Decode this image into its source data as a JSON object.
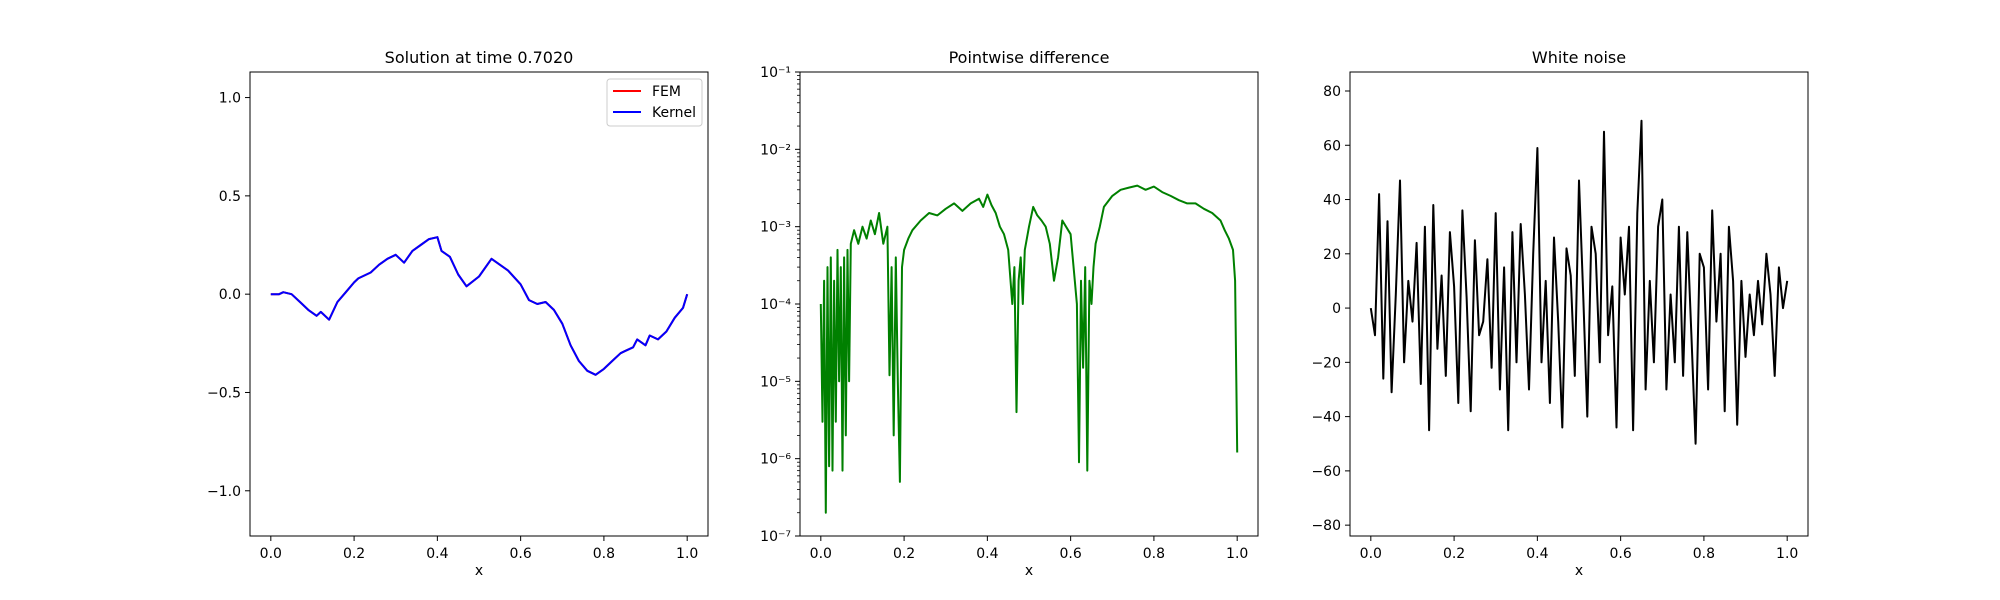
{
  "chart_data": [
    {
      "type": "line",
      "title": "Solution at time 0.7020",
      "xlabel": "x",
      "ylabel": "",
      "xlim": [
        -0.05,
        1.05
      ],
      "ylim": [
        -1.23,
        1.13
      ],
      "yscale": "linear",
      "xticks": [
        0.0,
        0.2,
        0.4,
        0.6,
        0.8,
        1.0
      ],
      "xtick_labels": [
        "0.0",
        "0.2",
        "0.4",
        "0.6",
        "0.8",
        "1.0"
      ],
      "yticks": [
        -1.0,
        -0.5,
        0.0,
        0.5,
        1.0
      ],
      "ytick_labels": [
        "−1.0",
        "−0.5",
        "0.0",
        "0.5",
        "1.0"
      ],
      "legend": {
        "position": "top-right",
        "entries": [
          "FEM",
          "Kernel"
        ]
      },
      "series": [
        {
          "name": "FEM",
          "color": "#ff0000",
          "x": [
            0.0,
            0.02,
            0.03,
            0.05,
            0.07,
            0.09,
            0.11,
            0.12,
            0.14,
            0.16,
            0.18,
            0.2,
            0.21,
            0.24,
            0.26,
            0.28,
            0.3,
            0.32,
            0.34,
            0.36,
            0.38,
            0.4,
            0.41,
            0.43,
            0.45,
            0.47,
            0.5,
            0.53,
            0.55,
            0.57,
            0.6,
            0.62,
            0.64,
            0.66,
            0.68,
            0.7,
            0.72,
            0.74,
            0.76,
            0.78,
            0.8,
            0.82,
            0.84,
            0.85,
            0.87,
            0.88,
            0.9,
            0.91,
            0.93,
            0.95,
            0.97,
            0.99,
            1.0
          ],
          "y": [
            0.0,
            0.0,
            0.01,
            0.0,
            -0.04,
            -0.08,
            -0.11,
            -0.09,
            -0.13,
            -0.04,
            0.01,
            0.06,
            0.08,
            0.11,
            0.15,
            0.18,
            0.2,
            0.16,
            0.22,
            0.25,
            0.28,
            0.29,
            0.22,
            0.19,
            0.1,
            0.04,
            0.09,
            0.18,
            0.15,
            0.12,
            0.05,
            -0.03,
            -0.05,
            -0.04,
            -0.08,
            -0.15,
            -0.26,
            -0.34,
            -0.39,
            -0.41,
            -0.38,
            -0.34,
            -0.3,
            -0.29,
            -0.27,
            -0.23,
            -0.26,
            -0.21,
            -0.23,
            -0.19,
            -0.12,
            -0.07,
            0.0
          ]
        },
        {
          "name": "Kernel",
          "color": "#0000ff",
          "x": [
            0.0,
            0.02,
            0.03,
            0.05,
            0.07,
            0.09,
            0.11,
            0.12,
            0.14,
            0.16,
            0.18,
            0.2,
            0.21,
            0.24,
            0.26,
            0.28,
            0.3,
            0.32,
            0.34,
            0.36,
            0.38,
            0.4,
            0.41,
            0.43,
            0.45,
            0.47,
            0.5,
            0.53,
            0.55,
            0.57,
            0.6,
            0.62,
            0.64,
            0.66,
            0.68,
            0.7,
            0.72,
            0.74,
            0.76,
            0.78,
            0.8,
            0.82,
            0.84,
            0.85,
            0.87,
            0.88,
            0.9,
            0.91,
            0.93,
            0.95,
            0.97,
            0.99,
            1.0
          ],
          "y": [
            0.0,
            0.0,
            0.01,
            0.0,
            -0.04,
            -0.08,
            -0.11,
            -0.09,
            -0.13,
            -0.04,
            0.01,
            0.06,
            0.08,
            0.11,
            0.15,
            0.18,
            0.2,
            0.16,
            0.22,
            0.25,
            0.28,
            0.29,
            0.22,
            0.19,
            0.1,
            0.04,
            0.09,
            0.18,
            0.15,
            0.12,
            0.05,
            -0.03,
            -0.05,
            -0.04,
            -0.08,
            -0.15,
            -0.26,
            -0.34,
            -0.39,
            -0.41,
            -0.38,
            -0.34,
            -0.3,
            -0.29,
            -0.27,
            -0.23,
            -0.26,
            -0.21,
            -0.23,
            -0.19,
            -0.12,
            -0.07,
            0.0
          ]
        }
      ]
    },
    {
      "type": "line",
      "title": "Pointwise difference",
      "xlabel": "x",
      "ylabel": "",
      "xlim": [
        -0.05,
        1.05
      ],
      "ylim": [
        1e-07,
        0.1
      ],
      "yscale": "log",
      "xticks": [
        0.0,
        0.2,
        0.4,
        0.6,
        0.8,
        1.0
      ],
      "xtick_labels": [
        "0.0",
        "0.2",
        "0.4",
        "0.6",
        "0.8",
        "1.0"
      ],
      "yticks": [
        -7,
        -6,
        -5,
        -4,
        -3,
        -2,
        -1
      ],
      "ytick_labels": [
        "10⁻⁷",
        "10⁻⁶",
        "10⁻⁵",
        "10⁻⁴",
        "10⁻³",
        "10⁻²",
        "10⁻¹"
      ],
      "series": [
        {
          "name": "difference",
          "color": "#008000",
          "x": [
            0.0,
            0.004,
            0.008,
            0.012,
            0.016,
            0.02,
            0.024,
            0.028,
            0.032,
            0.036,
            0.04,
            0.044,
            0.048,
            0.052,
            0.056,
            0.06,
            0.064,
            0.068,
            0.072,
            0.08,
            0.09,
            0.1,
            0.11,
            0.12,
            0.13,
            0.14,
            0.15,
            0.16,
            0.165,
            0.17,
            0.175,
            0.18,
            0.185,
            0.19,
            0.195,
            0.2,
            0.21,
            0.22,
            0.24,
            0.26,
            0.28,
            0.3,
            0.32,
            0.34,
            0.36,
            0.38,
            0.39,
            0.4,
            0.41,
            0.42,
            0.43,
            0.44,
            0.45,
            0.46,
            0.465,
            0.47,
            0.475,
            0.48,
            0.485,
            0.49,
            0.5,
            0.51,
            0.52,
            0.53,
            0.54,
            0.55,
            0.56,
            0.57,
            0.58,
            0.6,
            0.61,
            0.615,
            0.62,
            0.625,
            0.63,
            0.635,
            0.64,
            0.645,
            0.65,
            0.655,
            0.66,
            0.67,
            0.68,
            0.7,
            0.72,
            0.74,
            0.76,
            0.78,
            0.8,
            0.82,
            0.84,
            0.86,
            0.88,
            0.9,
            0.92,
            0.94,
            0.96,
            0.97,
            0.98,
            0.99,
            0.995,
            1.0
          ],
          "y": [
            0.0001,
            3e-06,
            0.0002,
            2e-07,
            0.0003,
            8e-07,
            0.0004,
            7e-07,
            0.0002,
            3e-06,
            0.0005,
            1e-05,
            0.0003,
            7e-07,
            0.0004,
            2e-06,
            0.0005,
            1e-05,
            0.0006,
            0.0009,
            0.0006,
            0.001,
            0.0007,
            0.0012,
            0.0008,
            0.0015,
            0.0006,
            0.001,
            1.2e-05,
            0.0003,
            2e-06,
            0.0004,
            1e-05,
            5e-07,
            0.0003,
            0.0005,
            0.0007,
            0.0009,
            0.0012,
            0.0015,
            0.0014,
            0.0017,
            0.002,
            0.0016,
            0.002,
            0.0023,
            0.0018,
            0.0026,
            0.0019,
            0.0015,
            0.001,
            0.0008,
            0.0005,
            0.0001,
            0.0003,
            4e-06,
            0.0002,
            0.0004,
            0.0001,
            0.0005,
            0.001,
            0.0018,
            0.0014,
            0.0012,
            0.001,
            0.0006,
            0.0002,
            0.0004,
            0.0012,
            0.0008,
            0.0002,
            0.0001,
            9e-07,
            0.0002,
            1.5e-05,
            0.0003,
            7e-07,
            0.0002,
            0.0001,
            0.0003,
            0.0006,
            0.001,
            0.0018,
            0.0025,
            0.003,
            0.0032,
            0.0034,
            0.003,
            0.0033,
            0.0028,
            0.0025,
            0.0022,
            0.002,
            0.002,
            0.0017,
            0.0015,
            0.0012,
            0.0009,
            0.0007,
            0.0005,
            0.0002,
            1.2e-06
          ]
        }
      ]
    },
    {
      "type": "line",
      "title": "White noise",
      "xlabel": "x",
      "ylabel": "",
      "xlim": [
        -0.05,
        1.05
      ],
      "ylim": [
        -84,
        87
      ],
      "yscale": "linear",
      "xticks": [
        0.0,
        0.2,
        0.4,
        0.6,
        0.8,
        1.0
      ],
      "xtick_labels": [
        "0.0",
        "0.2",
        "0.4",
        "0.6",
        "0.8",
        "1.0"
      ],
      "yticks": [
        -80,
        -60,
        -40,
        -20,
        0,
        20,
        40,
        60,
        80
      ],
      "ytick_labels": [
        "−80",
        "−60",
        "−40",
        "−20",
        "0",
        "20",
        "40",
        "60",
        "80"
      ],
      "series": [
        {
          "name": "noise",
          "color": "#000000",
          "x": [
            0.0,
            0.01,
            0.02,
            0.03,
            0.04,
            0.05,
            0.06,
            0.07,
            0.08,
            0.09,
            0.1,
            0.11,
            0.12,
            0.13,
            0.14,
            0.15,
            0.16,
            0.17,
            0.18,
            0.19,
            0.2,
            0.21,
            0.22,
            0.23,
            0.24,
            0.25,
            0.26,
            0.27,
            0.28,
            0.29,
            0.3,
            0.31,
            0.32,
            0.33,
            0.34,
            0.35,
            0.36,
            0.37,
            0.38,
            0.39,
            0.4,
            0.41,
            0.42,
            0.43,
            0.44,
            0.45,
            0.46,
            0.47,
            0.48,
            0.49,
            0.5,
            0.51,
            0.52,
            0.53,
            0.54,
            0.55,
            0.56,
            0.57,
            0.58,
            0.59,
            0.6,
            0.61,
            0.62,
            0.63,
            0.64,
            0.65,
            0.66,
            0.67,
            0.68,
            0.69,
            0.7,
            0.71,
            0.72,
            0.73,
            0.74,
            0.75,
            0.76,
            0.77,
            0.78,
            0.79,
            0.8,
            0.81,
            0.82,
            0.83,
            0.84,
            0.85,
            0.86,
            0.87,
            0.88,
            0.89,
            0.9,
            0.91,
            0.92,
            0.93,
            0.94,
            0.95,
            0.96,
            0.97,
            0.98,
            0.99,
            1.0
          ],
          "y": [
            0,
            -10,
            42,
            -26,
            32,
            -31,
            5,
            47,
            -20,
            10,
            -5,
            24,
            -28,
            30,
            -45,
            38,
            -15,
            12,
            -25,
            28,
            8,
            -35,
            36,
            4,
            -38,
            25,
            -10,
            -5,
            18,
            -22,
            35,
            -30,
            15,
            -45,
            28,
            -20,
            31,
            5,
            -30,
            20,
            59,
            -20,
            10,
            -35,
            26,
            -5,
            -44,
            22,
            12,
            -25,
            47,
            5,
            -40,
            30,
            20,
            -20,
            65,
            -10,
            8,
            -44,
            26,
            5,
            30,
            -45,
            35,
            69,
            -30,
            10,
            -20,
            30,
            40,
            -30,
            5,
            -20,
            30,
            -25,
            28,
            -10,
            -50,
            20,
            15,
            -30,
            36,
            -5,
            20,
            -38,
            30,
            10,
            -43,
            10,
            -18,
            5,
            -10,
            10,
            -6,
            20,
            5,
            -25,
            15,
            0,
            10
          ]
        }
      ]
    }
  ]
}
